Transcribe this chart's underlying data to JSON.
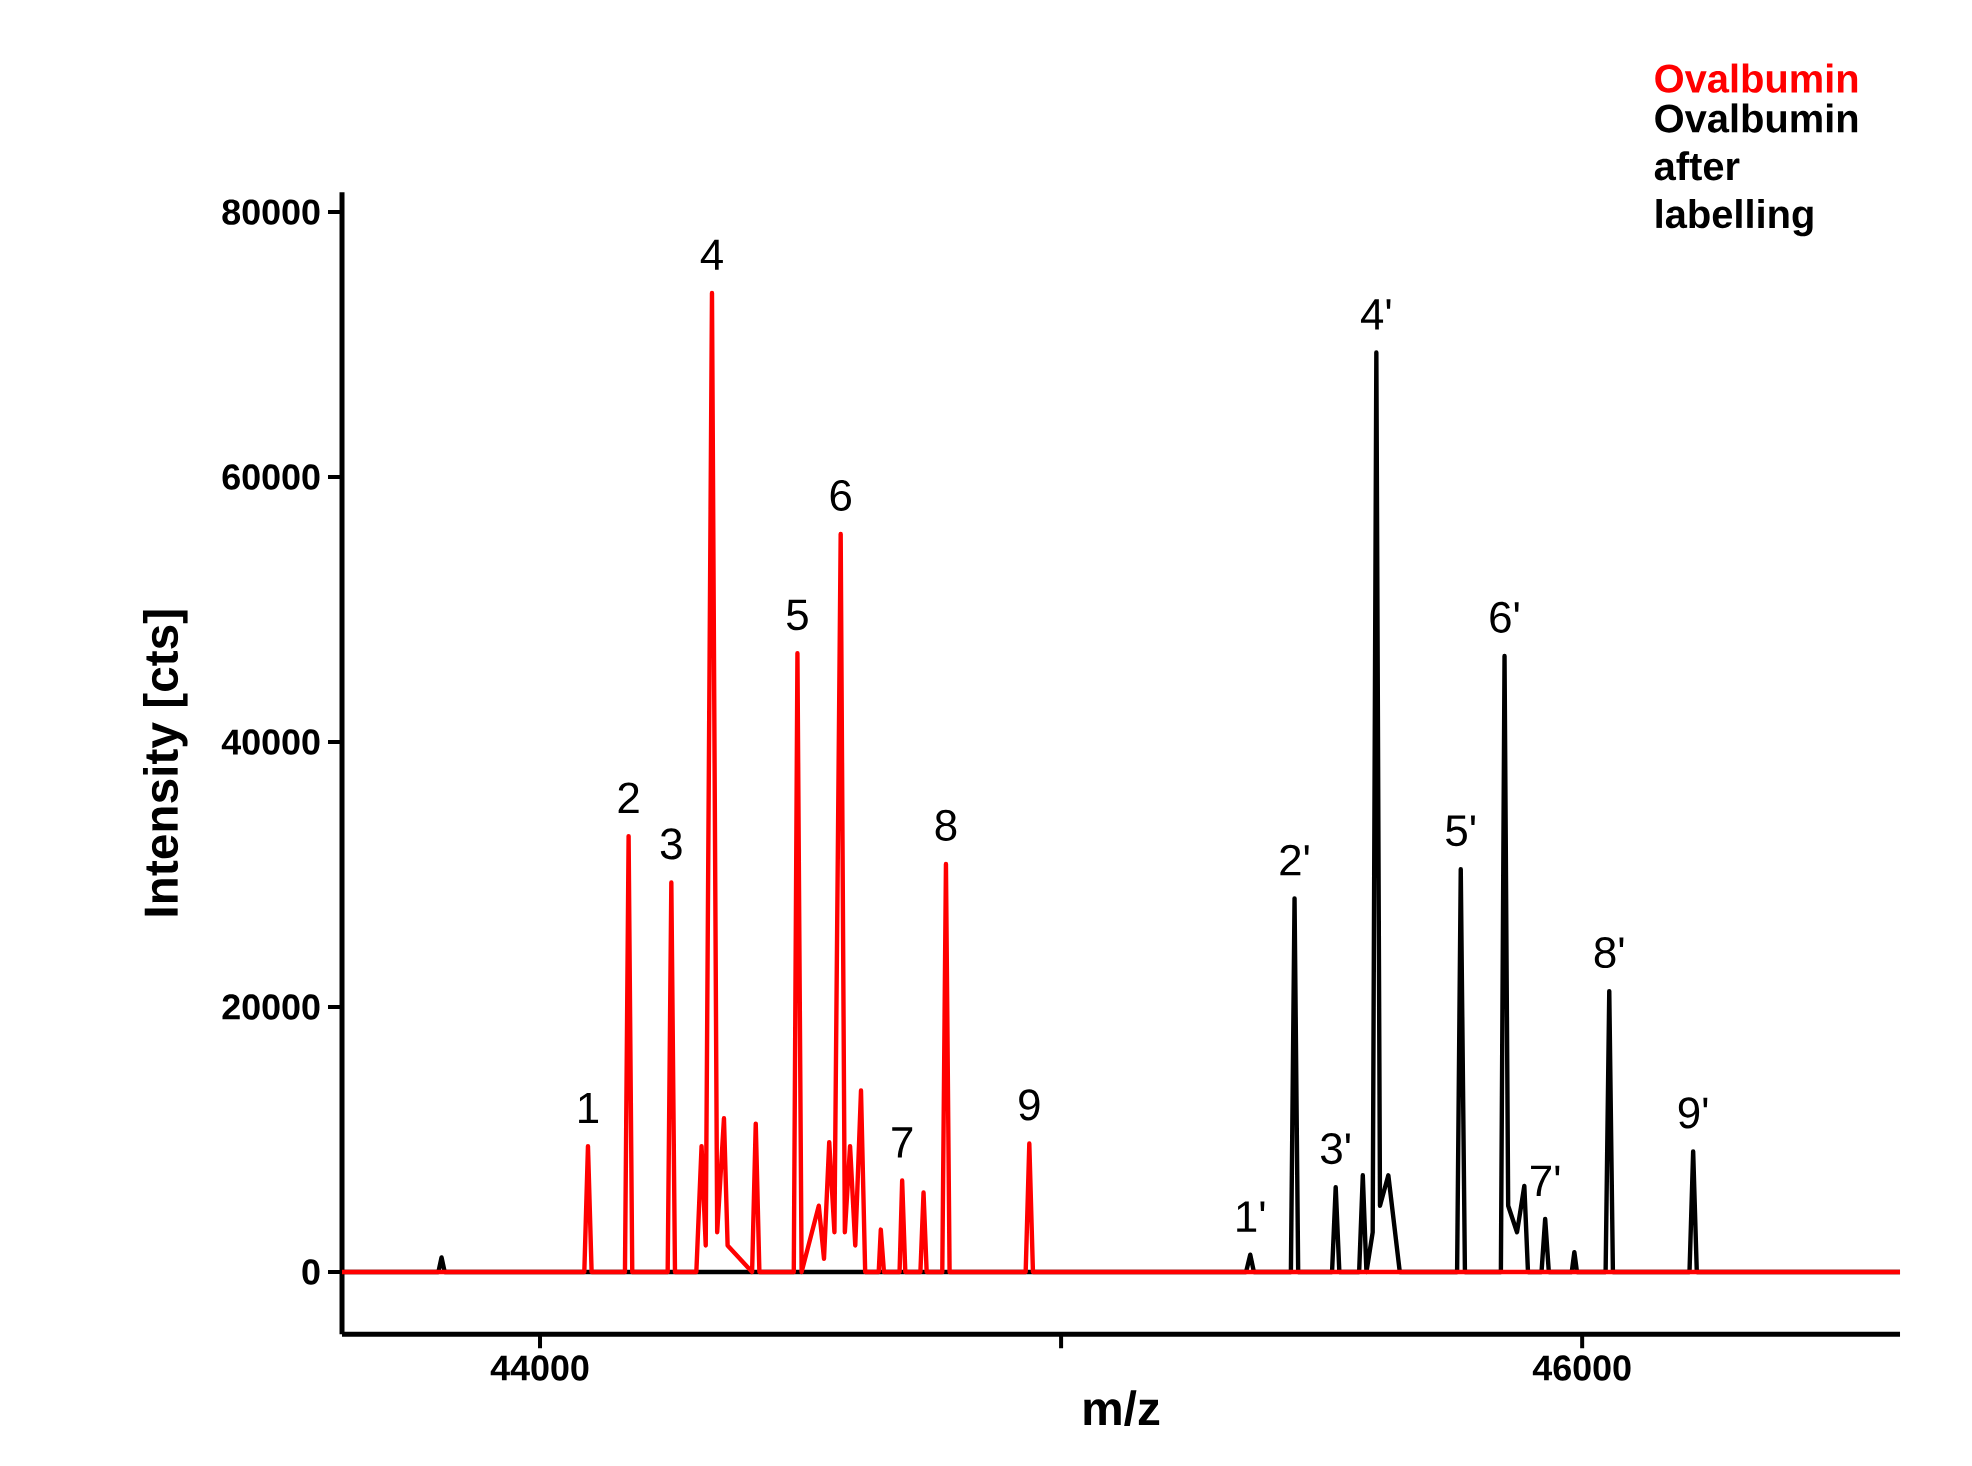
{
  "chart_data": {
    "type": "line",
    "xlabel": "m/z",
    "ylabel": "Intensity [cts]",
    "xlim": [
      43620,
      46610
    ],
    "ylim": [
      -4700,
      81500
    ],
    "xticks": [
      44000,
      {
        "value": 45000,
        "label": null
      },
      46000
    ],
    "yticks": [
      0,
      20000,
      40000,
      60000,
      80000
    ],
    "grid": false,
    "legend": "top right",
    "marker": "none",
    "line_style": "solid",
    "series": [
      {
        "name": "Ovalbumin",
        "color": "#ff0000",
        "x": [
          43620,
          44085,
          44092,
          44099,
          44163,
          44170,
          44177,
          44245,
          44252,
          44259,
          44300,
          44310,
          44318,
          44330,
          44340,
          44353,
          44360,
          44407,
          44414,
          44421,
          44487,
          44494,
          44502,
          44535,
          44545,
          44555,
          44565,
          44577,
          44585,
          44595,
          44605,
          44616,
          44624,
          44650,
          44654,
          44660,
          44690,
          44695,
          44701,
          44730,
          44736,
          44742,
          44772,
          44779,
          44786,
          44932,
          44939,
          44946,
          46610
        ],
        "values": [
          0,
          0,
          9500,
          0,
          0,
          32900,
          0,
          0,
          29400,
          0,
          0,
          9500,
          2000,
          73900,
          3000,
          11600,
          2000,
          0,
          11200,
          0,
          0,
          46700,
          0,
          5000,
          1000,
          9800,
          3000,
          55700,
          3000,
          9500,
          2000,
          13700,
          0,
          0,
          3200,
          0,
          0,
          6900,
          0,
          0,
          6000,
          0,
          0,
          30800,
          0,
          0,
          9700,
          0,
          0
        ]
      },
      {
        "name": "Ovalbumin after labelling",
        "color": "#000000",
        "x": [
          43620,
          43805,
          43811,
          43817,
          45355,
          45363,
          45370,
          45441,
          45448,
          45455,
          45520,
          45527,
          45534,
          45572,
          45579,
          45586,
          45598,
          45605,
          45612,
          45628,
          45650,
          45760,
          45767,
          45775,
          45844,
          45851,
          45858,
          45875,
          45889,
          45896,
          45922,
          45929,
          45936,
          45980,
          45985,
          45990,
          46045,
          46052,
          46059,
          46206,
          46213,
          46220,
          46610
        ],
        "values": [
          0,
          0,
          1100,
          0,
          0,
          1300,
          0,
          0,
          28200,
          0,
          0,
          6400,
          0,
          0,
          7300,
          0,
          3000,
          69400,
          5000,
          7300,
          0,
          0,
          30400,
          0,
          0,
          46500,
          5000,
          3000,
          6500,
          0,
          0,
          4000,
          0,
          0,
          1500,
          0,
          0,
          21200,
          0,
          0,
          9100,
          0,
          0
        ]
      }
    ],
    "annotations": [
      {
        "text": "1",
        "x": 44092,
        "y": 9500
      },
      {
        "text": "2",
        "x": 44170,
        "y": 32900
      },
      {
        "text": "3",
        "x": 44252,
        "y": 29400
      },
      {
        "text": "4",
        "x": 44330,
        "y": 73900
      },
      {
        "text": "5",
        "x": 44494,
        "y": 46700
      },
      {
        "text": "6",
        "x": 44577,
        "y": 55700
      },
      {
        "text": "7",
        "x": 44695,
        "y": 6900
      },
      {
        "text": "8",
        "x": 44779,
        "y": 30800
      },
      {
        "text": "9",
        "x": 44939,
        "y": 9700
      },
      {
        "text": "1'",
        "x": 45363,
        "y": 1300
      },
      {
        "text": "2'",
        "x": 45448,
        "y": 28200
      },
      {
        "text": "3'",
        "x": 45527,
        "y": 6400
      },
      {
        "text": "4'",
        "x": 45605,
        "y": 69400
      },
      {
        "text": "5'",
        "x": 45767,
        "y": 30400
      },
      {
        "text": "6'",
        "x": 45851,
        "y": 46500
      },
      {
        "text": "7'",
        "x": 45929,
        "y": 4000
      },
      {
        "text": "8'",
        "x": 46052,
        "y": 21200
      },
      {
        "text": "9'",
        "x": 46213,
        "y": 9100
      }
    ]
  }
}
